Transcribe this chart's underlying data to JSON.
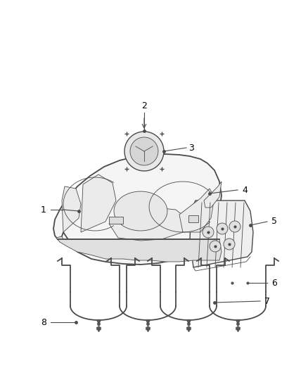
{
  "bg_color": "#ffffff",
  "line_color": "#4a4a4a",
  "label_color": "#000000",
  "tank_fill": "#f5f5f5",
  "tank_shadow": "#e0e0e0",
  "detail_fill": "#ebebeb",
  "fs_label": 9,
  "lw_main": 1.0,
  "lw_thin": 0.6,
  "lw_thick": 1.3
}
